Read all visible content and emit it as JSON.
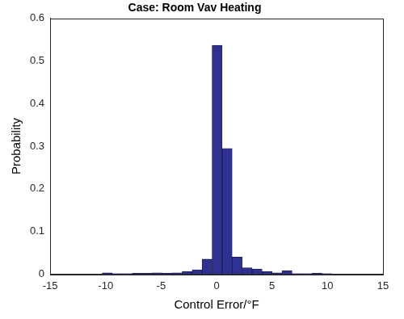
{
  "chart_data": {
    "type": "histogram",
    "title": "Case: Room Vav Heating",
    "x_label": "Control Error/°F",
    "y_label": "Probability",
    "bins": [
      -10.3,
      -9.4,
      -8.5,
      -7.6,
      -6.7,
      -5.8,
      -4.9,
      -4.0,
      -3.1,
      -2.2,
      -1.3,
      -0.4,
      0.5,
      1.4,
      2.3,
      3.2,
      4.1,
      5.0,
      5.9,
      6.8,
      7.7,
      8.6,
      9.5,
      10.4
    ],
    "values": [
      0.003,
      0.001,
      0.001,
      0.002,
      0.002,
      0.003,
      0.002,
      0.003,
      0.006,
      0.01,
      0.035,
      0.537,
      0.295,
      0.04,
      0.015,
      0.012,
      0.006,
      0.003,
      0.008,
      0.001,
      0.001,
      0.002,
      0.001
    ],
    "color": "#2e3192",
    "xlim": [
      -15,
      15
    ],
    "xticks": [
      -15,
      -10,
      -5,
      0,
      5,
      10,
      15
    ],
    "ylim": [
      0,
      0.6
    ],
    "yticks": [
      0,
      0.1,
      0.2,
      0.3,
      0.4,
      0.5,
      0.6
    ],
    "grid": false
  }
}
